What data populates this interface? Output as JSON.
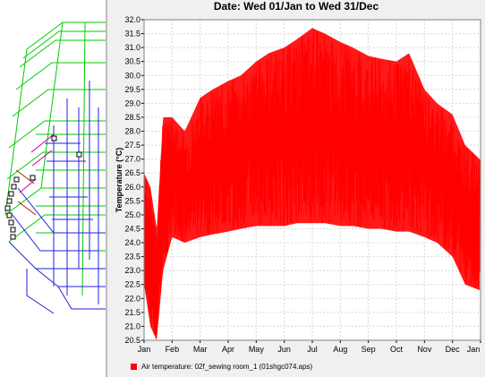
{
  "colors": {
    "series": "#ff0000",
    "plot_background": "#ffffff",
    "panel_background": "#f0f0f0",
    "grid": "#d8d8d8"
  },
  "chart_data": {
    "type": "line",
    "title": "Date: Wed 01/Jan to Wed 31/Dec",
    "xlabel": "",
    "ylabel": "Temperature (°C)",
    "ylim": [
      20.5,
      32.0
    ],
    "yticks": [
      20.5,
      21.0,
      21.5,
      22.0,
      22.5,
      23.0,
      23.5,
      24.0,
      24.5,
      25.0,
      25.5,
      26.0,
      26.5,
      27.0,
      27.5,
      28.0,
      28.5,
      29.0,
      29.5,
      30.0,
      30.5,
      31.0,
      31.5,
      32.0
    ],
    "ytick_labels": [
      "20.5",
      "21.0",
      "21.5",
      "22.0",
      "22.5",
      "23.0",
      "23.5",
      "24.0",
      "24.5",
      "25.0",
      "25.5",
      "26.0",
      "26.5",
      "27.0",
      "27.5",
      "28.0",
      "28.5",
      "29.0",
      "29.5",
      "30.0",
      "30.5",
      "31.0",
      "31.5",
      "32.0"
    ],
    "xticks": [
      "Jan",
      "Feb",
      "Mar",
      "Apr",
      "May",
      "Jun",
      "Jul",
      "Aug",
      "Sep",
      "Oct",
      "Nov",
      "Dec",
      "Jan"
    ],
    "grid": true,
    "legend_position": "bottom-left",
    "series": [
      {
        "name": "Air temperature: 02f_sewing room_1 (01shgc074.aps)",
        "x_dates": [
          "Jan 01",
          "Jan 08",
          "Jan 15",
          "Jan 22",
          "Feb 01",
          "Feb 15",
          "Mar 01",
          "Mar 15",
          "Apr 01",
          "Apr 15",
          "May 01",
          "May 15",
          "Jun 01",
          "Jun 15",
          "Jul 01",
          "Jul 15",
          "Aug 01",
          "Aug 15",
          "Sep 01",
          "Sep 15",
          "Oct 01",
          "Oct 15",
          "Nov 01",
          "Nov 15",
          "Dec 01",
          "Dec 15",
          "Dec 31"
        ],
        "daily_min": [
          22.5,
          21.0,
          20.5,
          23.0,
          24.2,
          24.0,
          24.2,
          24.3,
          24.4,
          24.5,
          24.6,
          24.6,
          24.6,
          24.7,
          24.7,
          24.7,
          24.6,
          24.6,
          24.5,
          24.5,
          24.4,
          24.4,
          24.2,
          24.0,
          23.5,
          22.5,
          22.3
        ],
        "daily_max": [
          26.5,
          26.0,
          24.5,
          28.5,
          28.5,
          28.0,
          29.2,
          29.5,
          29.8,
          30.0,
          30.5,
          30.8,
          31.0,
          31.3,
          31.7,
          31.5,
          31.2,
          31.0,
          30.7,
          30.6,
          30.5,
          30.8,
          29.5,
          29.0,
          28.6,
          27.5,
          27.0
        ]
      }
    ]
  }
}
